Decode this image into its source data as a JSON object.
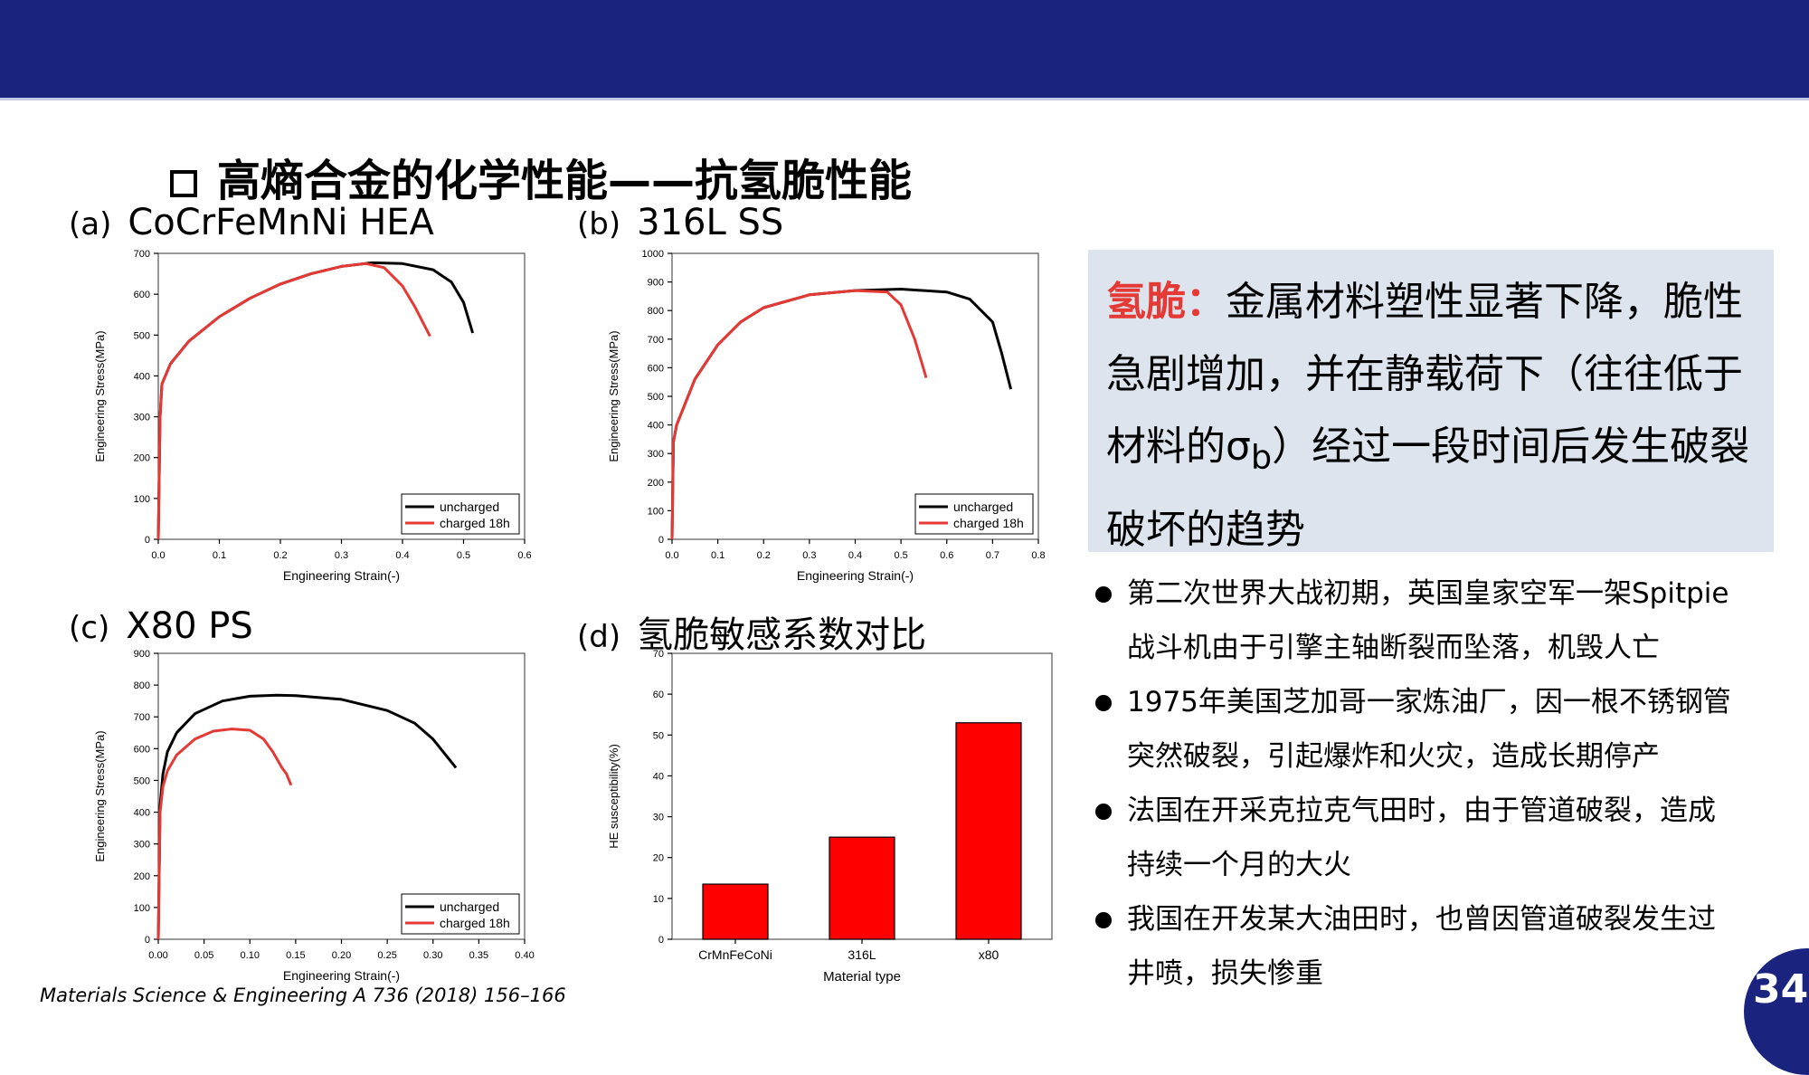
{
  "slide": {
    "title": "高熵合金的化学性能——抗氢脆性能",
    "page_number": "34",
    "reference": "Materials Science & Engineering A 736 (2018) 156–166",
    "colors": {
      "header_bar": "#1a237e",
      "accent_red": "#e53935",
      "def_box": "#dde4ee"
    }
  },
  "panels": [
    {
      "letter": "(a)",
      "title": "CoCrFeMnNi  HEA"
    },
    {
      "letter": "(b)",
      "title": "316L SS"
    },
    {
      "letter": "(c)",
      "title": "X80 PS"
    },
    {
      "letter": "(d)",
      "title": "氢脆敏感系数对比"
    }
  ],
  "definition": {
    "term": "氢脆：",
    "line1": "金属材料塑性显著下降，脆性",
    "line2": "急剧增加，并在静载荷下（往往低于",
    "line3a": "材料的σ",
    "line3sub": "b",
    "line3b": "）经过一段时间后发生破裂",
    "line4": "破坏的趋势"
  },
  "bullets": [
    {
      "line1": "第二次世界大战初期，英国皇家空军一架Spitpie",
      "line2": "战斗机由于引擎主轴断裂而坠落，机毁人亡"
    },
    {
      "line1": "1975年美国芝加哥一家炼油厂，因一根不锈钢管",
      "line2": "突然破裂，引起爆炸和火灾，造成长期停产"
    },
    {
      "line1": "法国在开采克拉克气田时，由于管道破裂，造成",
      "line2": "持续一个月的大火"
    },
    {
      "line1": "我国在开发某大油田时，也曾因管道破裂发生过",
      "line2": "井喷，损失惨重"
    }
  ],
  "chart_data": [
    {
      "type": "line",
      "xlabel": "Engineering Strain(-)",
      "ylabel": "Engineering Stress(MPa)",
      "xlim": [
        0,
        0.6
      ],
      "ylim": [
        0,
        700
      ],
      "xticks": [
        "0.0",
        "0.1",
        "0.2",
        "0.3",
        "0.4",
        "0.5",
        "0.6"
      ],
      "yticks": [
        "0",
        "100",
        "200",
        "300",
        "400",
        "500",
        "600",
        "700"
      ],
      "legend": "bottom-right",
      "series": [
        {
          "name": "uncharged",
          "color": "#000000",
          "x": [
            0,
            0.003,
            0.006,
            0.02,
            0.05,
            0.1,
            0.15,
            0.2,
            0.25,
            0.3,
            0.35,
            0.4,
            0.45,
            0.48,
            0.5,
            0.515
          ],
          "y": [
            0,
            300,
            380,
            430,
            485,
            545,
            590,
            625,
            650,
            668,
            677,
            675,
            660,
            630,
            580,
            505
          ]
        },
        {
          "name": "charged 18h",
          "color": "#e53935",
          "x": [
            0,
            0.003,
            0.006,
            0.02,
            0.05,
            0.1,
            0.15,
            0.2,
            0.25,
            0.3,
            0.34,
            0.37,
            0.4,
            0.42,
            0.445
          ],
          "y": [
            0,
            300,
            380,
            430,
            485,
            545,
            590,
            625,
            650,
            668,
            675,
            665,
            620,
            570,
            497
          ]
        }
      ]
    },
    {
      "type": "line",
      "xlabel": "Engineering Strain(-)",
      "ylabel": "Engineering Stress(MPa)",
      "xlim": [
        0,
        0.8
      ],
      "ylim": [
        0,
        1000
      ],
      "xticks": [
        "0.0",
        "0.1",
        "0.2",
        "0.3",
        "0.4",
        "0.5",
        "0.6",
        "0.7",
        "0.8"
      ],
      "yticks": [
        "0",
        "100",
        "200",
        "300",
        "400",
        "500",
        "600",
        "700",
        "800",
        "900",
        "1000"
      ],
      "legend": "bottom-right",
      "series": [
        {
          "name": "uncharged",
          "color": "#000000",
          "x": [
            0,
            0.003,
            0.01,
            0.05,
            0.1,
            0.15,
            0.2,
            0.3,
            0.4,
            0.5,
            0.6,
            0.65,
            0.7,
            0.72,
            0.74
          ],
          "y": [
            0,
            340,
            400,
            560,
            680,
            760,
            810,
            855,
            870,
            875,
            865,
            840,
            760,
            650,
            525
          ]
        },
        {
          "name": "charged 18h",
          "color": "#e53935",
          "x": [
            0,
            0.003,
            0.01,
            0.05,
            0.1,
            0.15,
            0.2,
            0.3,
            0.4,
            0.47,
            0.5,
            0.53,
            0.555
          ],
          "y": [
            0,
            340,
            400,
            560,
            680,
            760,
            810,
            855,
            870,
            865,
            820,
            700,
            565
          ]
        }
      ]
    },
    {
      "type": "line",
      "xlabel": "Engineering Strain(-)",
      "ylabel": "Engineering Stress(MPa)",
      "xlim": [
        0,
        0.4
      ],
      "ylim": [
        0,
        900
      ],
      "xticks": [
        "0.00",
        "0.05",
        "0.10",
        "0.15",
        "0.20",
        "0.25",
        "0.30",
        "0.35",
        "0.40"
      ],
      "yticks": [
        "0",
        "100",
        "200",
        "300",
        "400",
        "500",
        "600",
        "700",
        "800",
        "900"
      ],
      "legend": "bottom-right",
      "series": [
        {
          "name": "uncharged",
          "color": "#000000",
          "x": [
            0,
            0.002,
            0.005,
            0.01,
            0.02,
            0.04,
            0.07,
            0.1,
            0.13,
            0.15,
            0.2,
            0.25,
            0.28,
            0.3,
            0.325
          ],
          "y": [
            0,
            420,
            520,
            590,
            650,
            710,
            750,
            765,
            768,
            767,
            755,
            720,
            680,
            630,
            540
          ]
        },
        {
          "name": "charged 18h",
          "color": "#e53935",
          "x": [
            0,
            0.002,
            0.005,
            0.01,
            0.02,
            0.04,
            0.06,
            0.08,
            0.1,
            0.115,
            0.125,
            0.135,
            0.14,
            0.145
          ],
          "y": [
            0,
            400,
            480,
            530,
            580,
            630,
            655,
            662,
            658,
            630,
            590,
            540,
            520,
            485
          ]
        }
      ]
    },
    {
      "type": "bar",
      "xlabel": "Material type",
      "ylabel": "HE susceptibility(%)",
      "ylim": [
        0,
        70
      ],
      "yticks": [
        "0",
        "10",
        "20",
        "30",
        "40",
        "50",
        "60",
        "70"
      ],
      "categories": [
        "CrMnFeCoNi",
        "316L",
        "x80"
      ],
      "values": [
        13.5,
        25,
        53
      ],
      "color": "#ff0000"
    }
  ]
}
